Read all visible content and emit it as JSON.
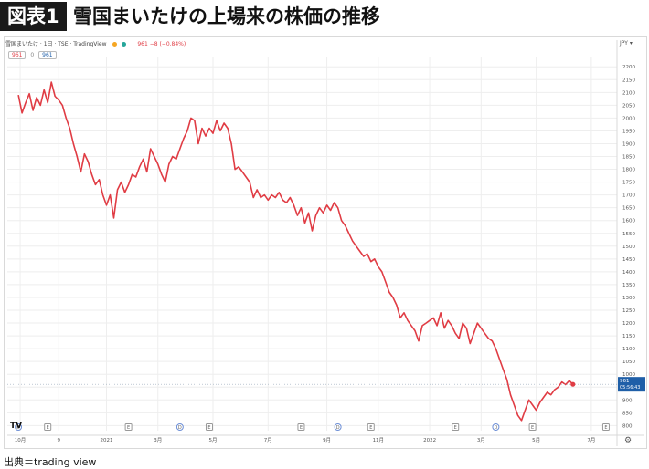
{
  "header": {
    "badge": "図表1",
    "title": "雪国まいたけの上場来の株価の推移"
  },
  "legend": {
    "symbol": "雪国まいたけ · 1日 · TSE · TradingView",
    "price_change": "961 −8 (−0.84%)",
    "open_box": "961",
    "close_box": "961",
    "separator": "0",
    "currency": "JPY ▾"
  },
  "source": "出典＝trading view",
  "logo": "TV",
  "gear": "⚙",
  "colors": {
    "line": "#e03c44",
    "price_tag": "#1f5fa8",
    "grid": "#eeeeee"
  },
  "chart_data": {
    "type": "line",
    "title": "雪国まいたけの上場来の株価の推移",
    "xlabel": "",
    "ylabel": "",
    "ylim": [
      780,
      2240
    ],
    "y_ticks": [
      800,
      850,
      900,
      950,
      1000,
      1050,
      1100,
      1150,
      1200,
      1250,
      1300,
      1350,
      1400,
      1450,
      1500,
      1550,
      1600,
      1650,
      1700,
      1750,
      1800,
      1850,
      1900,
      1950,
      2000,
      2050,
      2100,
      2150,
      2200
    ],
    "x_ticks": [
      {
        "label": "10月",
        "t": 0.5
      },
      {
        "label": "9",
        "t": 11
      },
      {
        "label": "2021",
        "t": 24
      },
      {
        "label": "3月",
        "t": 38
      },
      {
        "label": "5月",
        "t": 53
      },
      {
        "label": "7月",
        "t": 68
      },
      {
        "label": "9月",
        "t": 84
      },
      {
        "label": "11月",
        "t": 98
      },
      {
        "label": "2022",
        "t": 112
      },
      {
        "label": "3月",
        "t": 126
      },
      {
        "label": "5月",
        "t": 141
      },
      {
        "label": "7月",
        "t": 156
      }
    ],
    "x_range": [
      -3,
      163
    ],
    "last_price": {
      "value": "961",
      "time": "05:56:43"
    },
    "events": [
      {
        "type": "D",
        "t": 0
      },
      {
        "type": "E",
        "t": 8
      },
      {
        "type": "E",
        "t": 30
      },
      {
        "type": "D",
        "t": 44
      },
      {
        "type": "E",
        "t": 52
      },
      {
        "type": "E",
        "t": 77
      },
      {
        "type": "D",
        "t": 87
      },
      {
        "type": "E",
        "t": 96
      },
      {
        "type": "E",
        "t": 119
      },
      {
        "type": "D",
        "t": 130
      },
      {
        "type": "E",
        "t": 140
      },
      {
        "type": "E",
        "t": 160
      }
    ],
    "series": [
      {
        "points": [
          [
            0,
            2090
          ],
          [
            1,
            2020
          ],
          [
            2,
            2060
          ],
          [
            3,
            2095
          ],
          [
            4,
            2030
          ],
          [
            5,
            2080
          ],
          [
            6,
            2050
          ],
          [
            7,
            2110
          ],
          [
            8,
            2060
          ],
          [
            9,
            2140
          ],
          [
            10,
            2085
          ],
          [
            11,
            2070
          ],
          [
            12,
            2050
          ],
          [
            13,
            2000
          ],
          [
            14,
            1960
          ],
          [
            15,
            1900
          ],
          [
            16,
            1850
          ],
          [
            17,
            1790
          ],
          [
            18,
            1860
          ],
          [
            19,
            1830
          ],
          [
            20,
            1780
          ],
          [
            21,
            1740
          ],
          [
            22,
            1760
          ],
          [
            23,
            1700
          ],
          [
            24,
            1660
          ],
          [
            25,
            1700
          ],
          [
            26,
            1610
          ],
          [
            27,
            1720
          ],
          [
            28,
            1750
          ],
          [
            29,
            1710
          ],
          [
            30,
            1740
          ],
          [
            31,
            1780
          ],
          [
            32,
            1770
          ],
          [
            33,
            1810
          ],
          [
            34,
            1840
          ],
          [
            35,
            1790
          ],
          [
            36,
            1880
          ],
          [
            37,
            1850
          ],
          [
            38,
            1820
          ],
          [
            39,
            1780
          ],
          [
            40,
            1750
          ],
          [
            41,
            1820
          ],
          [
            42,
            1850
          ],
          [
            43,
            1840
          ],
          [
            44,
            1880
          ],
          [
            45,
            1920
          ],
          [
            46,
            1950
          ],
          [
            47,
            2000
          ],
          [
            48,
            1990
          ],
          [
            49,
            1900
          ],
          [
            50,
            1960
          ],
          [
            51,
            1930
          ],
          [
            52,
            1960
          ],
          [
            53,
            1940
          ],
          [
            54,
            1990
          ],
          [
            55,
            1950
          ],
          [
            56,
            1980
          ],
          [
            57,
            1960
          ],
          [
            58,
            1900
          ],
          [
            59,
            1800
          ],
          [
            60,
            1810
          ],
          [
            61,
            1790
          ],
          [
            62,
            1770
          ],
          [
            63,
            1750
          ],
          [
            64,
            1690
          ],
          [
            65,
            1720
          ],
          [
            66,
            1690
          ],
          [
            67,
            1700
          ],
          [
            68,
            1680
          ],
          [
            69,
            1700
          ],
          [
            70,
            1690
          ],
          [
            71,
            1710
          ],
          [
            72,
            1680
          ],
          [
            73,
            1670
          ],
          [
            74,
            1690
          ],
          [
            75,
            1660
          ],
          [
            76,
            1620
          ],
          [
            77,
            1650
          ],
          [
            78,
            1590
          ],
          [
            79,
            1630
          ],
          [
            80,
            1560
          ],
          [
            81,
            1620
          ],
          [
            82,
            1650
          ],
          [
            83,
            1630
          ],
          [
            84,
            1660
          ],
          [
            85,
            1640
          ],
          [
            86,
            1670
          ],
          [
            87,
            1650
          ],
          [
            88,
            1600
          ],
          [
            89,
            1580
          ],
          [
            90,
            1550
          ],
          [
            91,
            1520
          ],
          [
            92,
            1500
          ],
          [
            93,
            1480
          ],
          [
            94,
            1460
          ],
          [
            95,
            1470
          ],
          [
            96,
            1440
          ],
          [
            97,
            1450
          ],
          [
            98,
            1420
          ],
          [
            99,
            1400
          ],
          [
            100,
            1360
          ],
          [
            101,
            1320
          ],
          [
            102,
            1300
          ],
          [
            103,
            1270
          ],
          [
            104,
            1220
          ],
          [
            105,
            1240
          ],
          [
            106,
            1210
          ],
          [
            107,
            1190
          ],
          [
            108,
            1170
          ],
          [
            109,
            1130
          ],
          [
            110,
            1190
          ],
          [
            111,
            1200
          ],
          [
            112,
            1210
          ],
          [
            113,
            1220
          ],
          [
            114,
            1190
          ],
          [
            115,
            1240
          ],
          [
            116,
            1180
          ],
          [
            117,
            1210
          ],
          [
            118,
            1190
          ],
          [
            119,
            1160
          ],
          [
            120,
            1140
          ],
          [
            121,
            1200
          ],
          [
            122,
            1180
          ],
          [
            123,
            1120
          ],
          [
            124,
            1160
          ],
          [
            125,
            1200
          ],
          [
            126,
            1180
          ],
          [
            127,
            1160
          ],
          [
            128,
            1140
          ],
          [
            129,
            1130
          ],
          [
            130,
            1100
          ],
          [
            131,
            1060
          ],
          [
            132,
            1020
          ],
          [
            133,
            980
          ],
          [
            134,
            920
          ],
          [
            135,
            880
          ],
          [
            136,
            840
          ],
          [
            137,
            820
          ],
          [
            138,
            860
          ],
          [
            139,
            900
          ],
          [
            140,
            880
          ],
          [
            141,
            860
          ],
          [
            142,
            890
          ],
          [
            143,
            910
          ],
          [
            144,
            930
          ],
          [
            145,
            920
          ],
          [
            146,
            940
          ],
          [
            147,
            950
          ],
          [
            148,
            970
          ],
          [
            149,
            960
          ],
          [
            150,
            975
          ],
          [
            151,
            961
          ]
        ]
      }
    ]
  }
}
